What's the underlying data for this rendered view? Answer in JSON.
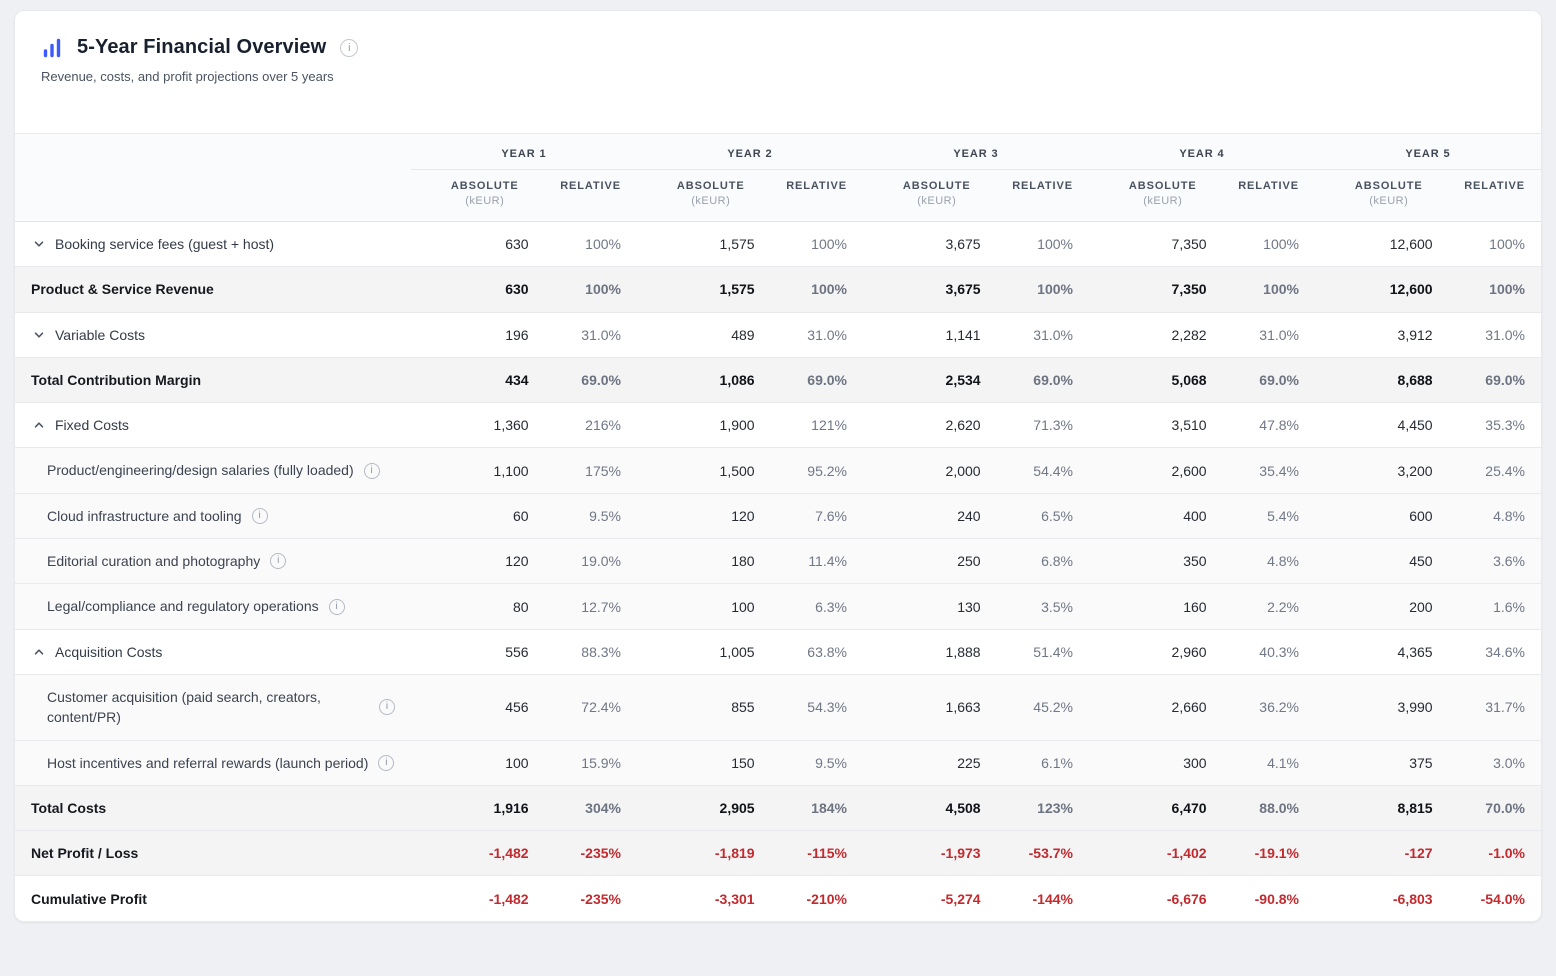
{
  "header": {
    "title": "5-Year Financial Overview",
    "subtitle": "Revenue, costs, and profit projections over 5 years"
  },
  "colors": {
    "accent_blue": "#3b5bfd",
    "negative_red": "#c22a2e",
    "total_row_bg": "#f4f4f5",
    "sub_row_bg": "#fafafa"
  },
  "table": {
    "years": [
      "YEAR 1",
      "YEAR 2",
      "YEAR 3",
      "YEAR 4",
      "YEAR 5"
    ],
    "columns": {
      "absolute": "ABSOLUTE",
      "absolute_unit": "(kEUR)",
      "relative": "RELATIVE"
    },
    "rows": [
      {
        "kind": "parent",
        "chevron": "down",
        "label": "Booking service fees (guest + host)",
        "values": [
          {
            "abs": "630",
            "rel": "100%"
          },
          {
            "abs": "1,575",
            "rel": "100%"
          },
          {
            "abs": "3,675",
            "rel": "100%"
          },
          {
            "abs": "7,350",
            "rel": "100%"
          },
          {
            "abs": "12,600",
            "rel": "100%"
          }
        ]
      },
      {
        "kind": "total",
        "label": "Product & Service Revenue",
        "values": [
          {
            "abs": "630",
            "rel": "100%"
          },
          {
            "abs": "1,575",
            "rel": "100%"
          },
          {
            "abs": "3,675",
            "rel": "100%"
          },
          {
            "abs": "7,350",
            "rel": "100%"
          },
          {
            "abs": "12,600",
            "rel": "100%"
          }
        ]
      },
      {
        "kind": "parent",
        "chevron": "down",
        "label": "Variable Costs",
        "values": [
          {
            "abs": "196",
            "rel": "31.0%"
          },
          {
            "abs": "489",
            "rel": "31.0%"
          },
          {
            "abs": "1,141",
            "rel": "31.0%"
          },
          {
            "abs": "2,282",
            "rel": "31.0%"
          },
          {
            "abs": "3,912",
            "rel": "31.0%"
          }
        ]
      },
      {
        "kind": "total",
        "label": "Total Contribution Margin",
        "values": [
          {
            "abs": "434",
            "rel": "69.0%"
          },
          {
            "abs": "1,086",
            "rel": "69.0%"
          },
          {
            "abs": "2,534",
            "rel": "69.0%"
          },
          {
            "abs": "5,068",
            "rel": "69.0%"
          },
          {
            "abs": "8,688",
            "rel": "69.0%"
          }
        ]
      },
      {
        "kind": "parent",
        "chevron": "up",
        "label": "Fixed Costs",
        "values": [
          {
            "abs": "1,360",
            "rel": "216%"
          },
          {
            "abs": "1,900",
            "rel": "121%"
          },
          {
            "abs": "2,620",
            "rel": "71.3%"
          },
          {
            "abs": "3,510",
            "rel": "47.8%"
          },
          {
            "abs": "4,450",
            "rel": "35.3%"
          }
        ]
      },
      {
        "kind": "sub",
        "info": true,
        "label": "Product/engineering/design salaries (fully loaded)",
        "values": [
          {
            "abs": "1,100",
            "rel": "175%"
          },
          {
            "abs": "1,500",
            "rel": "95.2%"
          },
          {
            "abs": "2,000",
            "rel": "54.4%"
          },
          {
            "abs": "2,600",
            "rel": "35.4%"
          },
          {
            "abs": "3,200",
            "rel": "25.4%"
          }
        ]
      },
      {
        "kind": "sub",
        "info": true,
        "label": "Cloud infrastructure and tooling",
        "values": [
          {
            "abs": "60",
            "rel": "9.5%"
          },
          {
            "abs": "120",
            "rel": "7.6%"
          },
          {
            "abs": "240",
            "rel": "6.5%"
          },
          {
            "abs": "400",
            "rel": "5.4%"
          },
          {
            "abs": "600",
            "rel": "4.8%"
          }
        ]
      },
      {
        "kind": "sub",
        "info": true,
        "label": "Editorial curation and photography",
        "values": [
          {
            "abs": "120",
            "rel": "19.0%"
          },
          {
            "abs": "180",
            "rel": "11.4%"
          },
          {
            "abs": "250",
            "rel": "6.8%"
          },
          {
            "abs": "350",
            "rel": "4.8%"
          },
          {
            "abs": "450",
            "rel": "3.6%"
          }
        ]
      },
      {
        "kind": "sub",
        "info": true,
        "label": "Legal/compliance and regulatory operations",
        "values": [
          {
            "abs": "80",
            "rel": "12.7%"
          },
          {
            "abs": "100",
            "rel": "6.3%"
          },
          {
            "abs": "130",
            "rel": "3.5%"
          },
          {
            "abs": "160",
            "rel": "2.2%"
          },
          {
            "abs": "200",
            "rel": "1.6%"
          }
        ]
      },
      {
        "kind": "parent",
        "chevron": "up",
        "label": "Acquisition Costs",
        "values": [
          {
            "abs": "556",
            "rel": "88.3%"
          },
          {
            "abs": "1,005",
            "rel": "63.8%"
          },
          {
            "abs": "1,888",
            "rel": "51.4%"
          },
          {
            "abs": "2,960",
            "rel": "40.3%"
          },
          {
            "abs": "4,365",
            "rel": "34.6%"
          }
        ]
      },
      {
        "kind": "sub",
        "info": true,
        "label": "Customer acquisition (paid search, creators, content/PR)",
        "values": [
          {
            "abs": "456",
            "rel": "72.4%"
          },
          {
            "abs": "855",
            "rel": "54.3%"
          },
          {
            "abs": "1,663",
            "rel": "45.2%"
          },
          {
            "abs": "2,660",
            "rel": "36.2%"
          },
          {
            "abs": "3,990",
            "rel": "31.7%"
          }
        ]
      },
      {
        "kind": "sub",
        "info": true,
        "label": "Host incentives and referral rewards (launch period)",
        "values": [
          {
            "abs": "100",
            "rel": "15.9%"
          },
          {
            "abs": "150",
            "rel": "9.5%"
          },
          {
            "abs": "225",
            "rel": "6.1%"
          },
          {
            "abs": "300",
            "rel": "4.1%"
          },
          {
            "abs": "375",
            "rel": "3.0%"
          }
        ]
      },
      {
        "kind": "total",
        "label": "Total Costs",
        "values": [
          {
            "abs": "1,916",
            "rel": "304%"
          },
          {
            "abs": "2,905",
            "rel": "184%"
          },
          {
            "abs": "4,508",
            "rel": "123%"
          },
          {
            "abs": "6,470",
            "rel": "88.0%"
          },
          {
            "abs": "8,815",
            "rel": "70.0%"
          }
        ]
      },
      {
        "kind": "total",
        "negative": true,
        "label": "Net Profit / Loss",
        "values": [
          {
            "abs": "-1,482",
            "rel": "-235%"
          },
          {
            "abs": "-1,819",
            "rel": "-115%"
          },
          {
            "abs": "-1,973",
            "rel": "-53.7%"
          },
          {
            "abs": "-1,402",
            "rel": "-19.1%"
          },
          {
            "abs": "-127",
            "rel": "-1.0%"
          }
        ]
      },
      {
        "kind": "total-white",
        "negative": true,
        "label": "Cumulative Profit",
        "values": [
          {
            "abs": "-1,482",
            "rel": "-235%"
          },
          {
            "abs": "-3,301",
            "rel": "-210%"
          },
          {
            "abs": "-5,274",
            "rel": "-144%"
          },
          {
            "abs": "-6,676",
            "rel": "-90.8%"
          },
          {
            "abs": "-6,803",
            "rel": "-54.0%"
          }
        ]
      }
    ]
  }
}
